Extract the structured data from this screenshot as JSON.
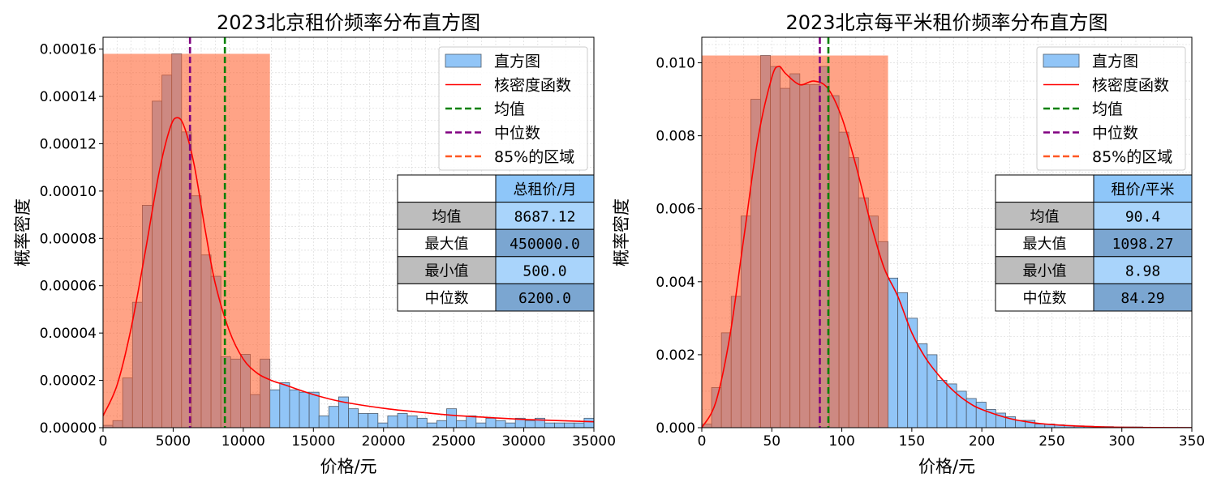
{
  "chart_data": [
    {
      "type": "bar",
      "title": "2023北京租价频率分布直方图",
      "xlabel": "价格/元",
      "ylabel": "概率密度",
      "xlim": [
        0,
        35000
      ],
      "ylim": [
        0,
        0.000165
      ],
      "xticks": [
        "0",
        "5000",
        "10000",
        "15000",
        "20000",
        "25000",
        "30000",
        "35000"
      ],
      "yticks": [
        "0.00000",
        "0.00002",
        "0.00004",
        "0.00006",
        "0.00008",
        "0.00010",
        "0.00012",
        "0.00014",
        "0.00016"
      ],
      "grid": true,
      "legend_position": "top-right",
      "legend": [
        "直方图",
        "核密度函数",
        "均值",
        "中位数",
        "85%的区域"
      ],
      "colors": {
        "hist": "#91c5f7",
        "kde": "#ff0000",
        "mean": "#008000",
        "median": "#800080",
        "region": "#ff5722"
      },
      "histogram": {
        "bin_width": 700,
        "x_start": 0,
        "densities": [
          1e-06,
          3e-06,
          2.1e-05,
          5.3e-05,
          9.4e-05,
          0.000138,
          0.000149,
          0.000158,
          0.000125,
          9.8e-05,
          7.3e-05,
          6.4e-05,
          3e-05,
          2.9e-05,
          3.1e-05,
          1.4e-05,
          2.9e-05,
          1.6e-05,
          1.9e-05,
          1.6e-05,
          1.5e-05,
          1.5e-05,
          5e-06,
          9e-06,
          1.3e-05,
          8e-06,
          6e-06,
          6e-06,
          2e-06,
          5e-06,
          6e-06,
          5e-06,
          4e-06,
          2e-06,
          3e-06,
          8e-06,
          3e-06,
          5e-06,
          2e-06,
          4e-06,
          3e-06,
          2e-06,
          4e-06,
          3e-06,
          4e-06,
          2e-06,
          2e-06,
          2e-06,
          2e-06,
          4e-06
        ]
      },
      "kde": {
        "x": [
          0,
          1000,
          2000,
          3000,
          4000,
          4800,
          5300,
          5800,
          6500,
          7300,
          8000,
          9000,
          10000,
          11000,
          12000,
          13000,
          15000,
          17000,
          20000,
          22500,
          25000,
          27500,
          30000,
          35000
        ],
        "y": [
          5e-06,
          1.8e-05,
          4.2e-05,
          7.4e-05,
          0.000108,
          0.000127,
          0.000131,
          0.000127,
          0.000111,
          8.3e-05,
          6.1e-05,
          4.1e-05,
          2.9e-05,
          2.3e-05,
          2e-05,
          1.8e-05,
          1.4e-05,
          1.1e-05,
          8.2e-06,
          6.6e-06,
          5.2e-06,
          4.3e-06,
          3.5e-06,
          2.5e-06
        ]
      },
      "mean": 8687.12,
      "median": 6200,
      "region": {
        "x0": 0,
        "x1": 11900,
        "height": 0.000158
      },
      "table": {
        "header": [
          "",
          "总租价/月"
        ],
        "rows": [
          [
            "均值",
            "8687.12"
          ],
          [
            "最大值",
            "450000.0"
          ],
          [
            "最小值",
            "500.0"
          ],
          [
            "中位数",
            "6200.0"
          ]
        ]
      }
    },
    {
      "type": "bar",
      "title": "2023北京每平米租价频率分布直方图",
      "xlabel": "价格/元",
      "ylabel": "概率密度",
      "xlim": [
        0,
        350
      ],
      "ylim": [
        0,
        0.0107
      ],
      "xticks": [
        "0",
        "50",
        "100",
        "150",
        "200",
        "250",
        "300",
        "350"
      ],
      "yticks": [
        "0.000",
        "0.002",
        "0.004",
        "0.006",
        "0.008",
        "0.010"
      ],
      "grid": true,
      "legend_position": "top-right",
      "legend": [
        "直方图",
        "核密度函数",
        "均值",
        "中位数",
        "85%的区域"
      ],
      "colors": {
        "hist": "#91c5f7",
        "kde": "#ff0000",
        "mean": "#008000",
        "median": "#800080",
        "region": "#ff5722"
      },
      "histogram": {
        "bin_width": 7,
        "x_start": 0,
        "densities": [
          0.0001,
          0.0011,
          0.0026,
          0.0036,
          0.0058,
          0.009,
          0.0102,
          0.0099,
          0.0093,
          0.0097,
          0.0094,
          0.0094,
          0.0099,
          0.0091,
          0.0081,
          0.0074,
          0.0063,
          0.0058,
          0.0051,
          0.0041,
          0.0037,
          0.003,
          0.0023,
          0.002,
          0.0013,
          0.0012,
          0.001,
          0.0008,
          0.0007,
          0.0005,
          0.0004,
          0.0003,
          0.0002,
          0.0002,
          0.0001,
          0.0001,
          8e-05,
          6e-05,
          5e-05,
          4e-05,
          3e-05,
          3e-05,
          2e-05,
          2e-05,
          2e-05,
          1e-05,
          1e-05,
          1e-05,
          1e-05,
          1e-05
        ]
      },
      "kde": {
        "x": [
          0,
          10,
          20,
          30,
          40,
          50,
          55,
          60,
          70,
          80,
          90,
          100,
          110,
          120,
          130,
          140,
          150,
          160,
          170,
          180,
          190,
          200,
          220,
          240,
          260,
          280,
          300,
          350
        ],
        "y": [
          0.0,
          0.0007,
          0.0025,
          0.0052,
          0.0079,
          0.0096,
          0.0099,
          0.0097,
          0.0094,
          0.0095,
          0.0093,
          0.0085,
          0.0072,
          0.0057,
          0.0044,
          0.0036,
          0.0026,
          0.0019,
          0.0014,
          0.001,
          0.0007,
          0.0005,
          0.00025,
          0.00012,
          6e-05,
          3e-05,
          1e-05,
          0.0
        ]
      },
      "mean": 90.4,
      "median": 84.29,
      "region": {
        "x0": 0,
        "x1": 133,
        "height": 0.0102
      },
      "table": {
        "header": [
          "",
          "租价/平米"
        ],
        "rows": [
          [
            "均值",
            "90.4"
          ],
          [
            "最大值",
            "1098.27"
          ],
          [
            "最小值",
            "8.98"
          ],
          [
            "中位数",
            "84.29"
          ]
        ]
      }
    }
  ]
}
